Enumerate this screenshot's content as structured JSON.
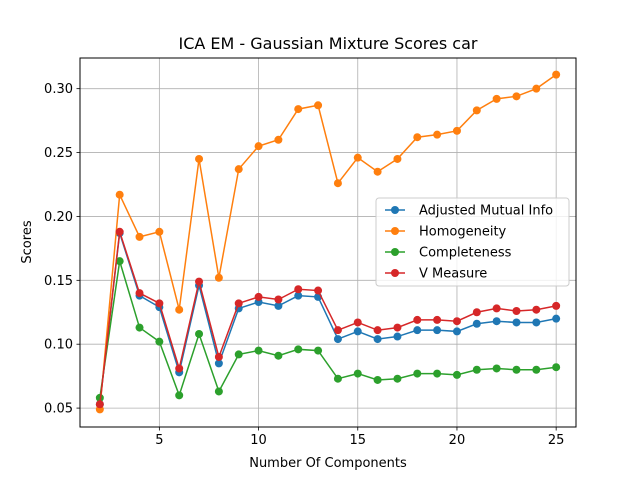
{
  "chart_data": {
    "type": "line",
    "title": "ICA EM - Gaussian Mixture Scores car",
    "xlabel": "Number Of Components",
    "ylabel": "Scores",
    "xlim": [
      1,
      26
    ],
    "ylim": [
      0.0352,
      0.324
    ],
    "xticks": [
      5,
      10,
      15,
      20,
      25
    ],
    "yticks": [
      0.05,
      0.1,
      0.15,
      0.2,
      0.25,
      0.3
    ],
    "ytick_labels": [
      "0.05",
      "0.10",
      "0.15",
      "0.20",
      "0.25",
      "0.30"
    ],
    "grid": true,
    "legend_position": "center-right",
    "x": [
      2,
      3,
      4,
      5,
      6,
      7,
      8,
      9,
      10,
      11,
      12,
      13,
      14,
      15,
      16,
      17,
      18,
      19,
      20,
      21,
      22,
      23,
      24,
      25
    ],
    "series": [
      {
        "name": "Adjusted Mutual Info",
        "color": "#1f77b4",
        "values": [
          0.053,
          0.187,
          0.138,
          0.129,
          0.078,
          0.146,
          0.085,
          0.128,
          0.133,
          0.13,
          0.138,
          0.137,
          0.104,
          0.11,
          0.104,
          0.106,
          0.111,
          0.111,
          0.11,
          0.116,
          0.118,
          0.117,
          0.117,
          0.12
        ]
      },
      {
        "name": "Homogeneity",
        "color": "#ff7f0e",
        "values": [
          0.049,
          0.217,
          0.184,
          0.188,
          0.127,
          0.245,
          0.152,
          0.237,
          0.255,
          0.26,
          0.284,
          0.287,
          0.226,
          0.246,
          0.235,
          0.245,
          0.262,
          0.264,
          0.267,
          0.283,
          0.292,
          0.294,
          0.3,
          0.311
        ]
      },
      {
        "name": "Completeness",
        "color": "#2ca02c",
        "values": [
          0.058,
          0.165,
          0.113,
          0.102,
          0.06,
          0.108,
          0.063,
          0.092,
          0.095,
          0.091,
          0.096,
          0.095,
          0.073,
          0.077,
          0.072,
          0.073,
          0.077,
          0.077,
          0.076,
          0.08,
          0.081,
          0.08,
          0.08,
          0.082
        ]
      },
      {
        "name": "V Measure",
        "color": "#d62728",
        "values": [
          0.053,
          0.188,
          0.14,
          0.132,
          0.081,
          0.149,
          0.09,
          0.132,
          0.137,
          0.135,
          0.143,
          0.142,
          0.111,
          0.117,
          0.111,
          0.113,
          0.119,
          0.119,
          0.118,
          0.125,
          0.128,
          0.126,
          0.127,
          0.13
        ]
      }
    ]
  }
}
